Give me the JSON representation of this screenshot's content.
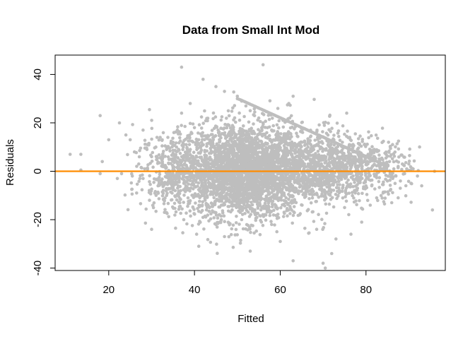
{
  "chart_data": {
    "type": "scatter",
    "title": "Data from Small Int Mod",
    "xlabel": "Fitted",
    "ylabel": "Residuals",
    "xlim": [
      7.5,
      98.5
    ],
    "ylim": [
      -41,
      48
    ],
    "x_ticks": [
      "20",
      "40",
      "60",
      "80"
    ],
    "x_tick_values": [
      20,
      40,
      60,
      80
    ],
    "y_ticks": [
      "-40",
      "-20",
      "0",
      "20",
      "40"
    ],
    "y_tick_values": [
      -40,
      -20,
      0,
      20,
      40
    ],
    "reference_line": {
      "y": 0,
      "color": "#FF8C00"
    },
    "point_color": "#BEBEBE",
    "points": [
      [
        11,
        7
      ],
      [
        13.5,
        7
      ],
      [
        13.5,
        0.5
      ],
      [
        18,
        23
      ],
      [
        18.5,
        4
      ],
      [
        18,
        -1
      ],
      [
        20,
        13
      ],
      [
        22.5,
        20
      ],
      [
        22,
        -3
      ],
      [
        23,
        -1
      ],
      [
        24,
        15
      ],
      [
        25,
        13
      ],
      [
        25.5,
        -2
      ],
      [
        26,
        8
      ],
      [
        26.5,
        -9
      ],
      [
        27,
        3
      ],
      [
        28,
        17
      ],
      [
        28,
        -3
      ],
      [
        29,
        11
      ],
      [
        29.5,
        -12
      ],
      [
        30,
        6
      ],
      [
        30,
        -24
      ],
      [
        31,
        10
      ],
      [
        31.5,
        -6
      ],
      [
        32,
        14
      ],
      [
        32.5,
        2
      ],
      [
        33,
        -17
      ],
      [
        33.5,
        9
      ],
      [
        34,
        -3
      ],
      [
        34.5,
        5
      ],
      [
        35,
        12
      ],
      [
        35.5,
        -8
      ],
      [
        36,
        17
      ],
      [
        36.5,
        -1
      ],
      [
        37,
        43
      ],
      [
        37,
        24
      ],
      [
        37.5,
        -20
      ],
      [
        38,
        7
      ],
      [
        38.5,
        -11
      ],
      [
        39,
        28
      ],
      [
        39.5,
        2
      ],
      [
        40,
        18
      ],
      [
        40.5,
        -26
      ],
      [
        41,
        13
      ],
      [
        41,
        -31
      ],
      [
        42,
        38
      ],
      [
        42,
        -6
      ],
      [
        42.5,
        6
      ],
      [
        43,
        21
      ],
      [
        43.5,
        -15
      ],
      [
        44,
        10
      ],
      [
        44.5,
        -2
      ],
      [
        45,
        35
      ],
      [
        45,
        -22
      ],
      [
        45.5,
        5
      ],
      [
        46,
        15
      ],
      [
        46.5,
        -9
      ],
      [
        47,
        33
      ],
      [
        47,
        -27
      ],
      [
        47.5,
        1
      ],
      [
        48,
        19
      ],
      [
        48.5,
        -4
      ],
      [
        49,
        8
      ],
      [
        49.5,
        -14
      ],
      [
        50,
        31
      ],
      [
        50,
        -1
      ],
      [
        50.5,
        12
      ],
      [
        51,
        29
      ],
      [
        51,
        -20
      ],
      [
        51.5,
        4
      ],
      [
        52,
        27
      ],
      [
        52.5,
        -7
      ],
      [
        53,
        25
      ],
      [
        53,
        -33
      ],
      [
        53.5,
        13
      ],
      [
        54,
        23
      ],
      [
        54.5,
        -10
      ],
      [
        55,
        22
      ],
      [
        55,
        3
      ],
      [
        55.5,
        -16
      ],
      [
        56,
        44
      ],
      [
        56,
        20
      ],
      [
        56.5,
        -3
      ],
      [
        57,
        18
      ],
      [
        57.5,
        7
      ],
      [
        58,
        17
      ],
      [
        58,
        -22
      ],
      [
        58.5,
        1
      ],
      [
        59,
        15
      ],
      [
        59.5,
        -8
      ],
      [
        60,
        14
      ],
      [
        60,
        -29
      ],
      [
        60.5,
        5
      ],
      [
        61,
        12
      ],
      [
        61.5,
        -13
      ],
      [
        62,
        28
      ],
      [
        62,
        11
      ],
      [
        62.5,
        -2
      ],
      [
        63,
        31
      ],
      [
        63,
        -37
      ],
      [
        63.5,
        9
      ],
      [
        64,
        8
      ],
      [
        64.5,
        -18
      ],
      [
        65,
        7
      ],
      [
        65.5,
        -5
      ],
      [
        66,
        6
      ],
      [
        66.5,
        3
      ],
      [
        67,
        5
      ],
      [
        67.5,
        -11
      ],
      [
        68,
        4
      ],
      [
        68.5,
        -24
      ],
      [
        69,
        3
      ],
      [
        69.5,
        10
      ],
      [
        70,
        -38
      ],
      [
        70,
        2
      ],
      [
        70.5,
        -40
      ],
      [
        71,
        13
      ],
      [
        71.5,
        -7
      ],
      [
        72,
        -34
      ],
      [
        72,
        1
      ],
      [
        72.5,
        9
      ],
      [
        73,
        -28
      ],
      [
        73.5,
        -3
      ],
      [
        74,
        0
      ],
      [
        74.5,
        12
      ],
      [
        75,
        -15
      ],
      [
        75.5,
        24
      ],
      [
        76,
        4
      ],
      [
        76.5,
        -26
      ],
      [
        77,
        8
      ],
      [
        77.5,
        -9
      ],
      [
        78,
        1
      ],
      [
        78.5,
        11
      ],
      [
        79,
        -21
      ],
      [
        79.5,
        4
      ],
      [
        80,
        -6
      ],
      [
        80.5,
        7
      ],
      [
        81,
        -14
      ],
      [
        81.5,
        2
      ],
      [
        82,
        6
      ],
      [
        82.5,
        -11
      ],
      [
        83,
        0
      ],
      [
        83.5,
        5
      ],
      [
        84,
        -9
      ],
      [
        84.5,
        3
      ],
      [
        85,
        -4
      ],
      [
        85.5,
        4
      ],
      [
        86,
        -13
      ],
      [
        86.5,
        1
      ],
      [
        87,
        -2
      ],
      [
        87.5,
        2
      ],
      [
        88,
        -7
      ],
      [
        88.5,
        3
      ],
      [
        89,
        -1
      ],
      [
        89.5,
        1
      ],
      [
        90,
        3
      ],
      [
        90.5,
        -5
      ],
      [
        91,
        1
      ],
      [
        92,
        -2
      ],
      [
        93,
        -6
      ],
      [
        95.5,
        -16
      ],
      [
        96,
        0
      ]
    ],
    "band_points": [
      [
        50,
        30
      ],
      [
        51,
        29.3
      ],
      [
        52,
        28.5
      ],
      [
        53,
        27.7
      ],
      [
        54,
        26.9
      ],
      [
        55,
        26.1
      ],
      [
        56,
        25.3
      ],
      [
        57,
        24.5
      ],
      [
        58,
        23.7
      ],
      [
        59,
        22.9
      ],
      [
        60,
        22.1
      ],
      [
        61,
        21.3
      ],
      [
        62,
        20.5
      ],
      [
        63,
        19.7
      ],
      [
        64,
        18.9
      ],
      [
        65,
        18.1
      ],
      [
        66,
        17.3
      ],
      [
        67,
        16.5
      ],
      [
        68,
        15.7
      ],
      [
        69,
        14.9
      ],
      [
        70,
        14.1
      ],
      [
        71,
        13.3
      ],
      [
        72,
        12.5
      ],
      [
        73,
        11.7
      ],
      [
        74,
        10.9
      ],
      [
        75,
        10.1
      ],
      [
        76,
        9.3
      ],
      [
        77,
        8.5
      ],
      [
        78,
        7.7
      ],
      [
        79,
        6.9
      ],
      [
        80,
        6.1
      ],
      [
        81,
        5.3
      ],
      [
        82,
        4.5
      ],
      [
        83,
        3.7
      ],
      [
        84,
        2.9
      ],
      [
        85,
        2.1
      ]
    ],
    "cloud": [
      {
        "cx": 52,
        "cy": 0,
        "sx": 6.5,
        "sy": 10,
        "n": 2200
      },
      {
        "cx": 65,
        "cy": 1,
        "sx": 8,
        "sy": 8,
        "n": 1100
      },
      {
        "cx": 42,
        "cy": 0,
        "sx": 6,
        "sy": 8,
        "n": 550
      },
      {
        "cx": 78,
        "cy": 2,
        "sx": 6,
        "sy": 6,
        "n": 420
      },
      {
        "cx": 34,
        "cy": 0,
        "sx": 4,
        "sy": 9,
        "n": 200
      }
    ]
  }
}
